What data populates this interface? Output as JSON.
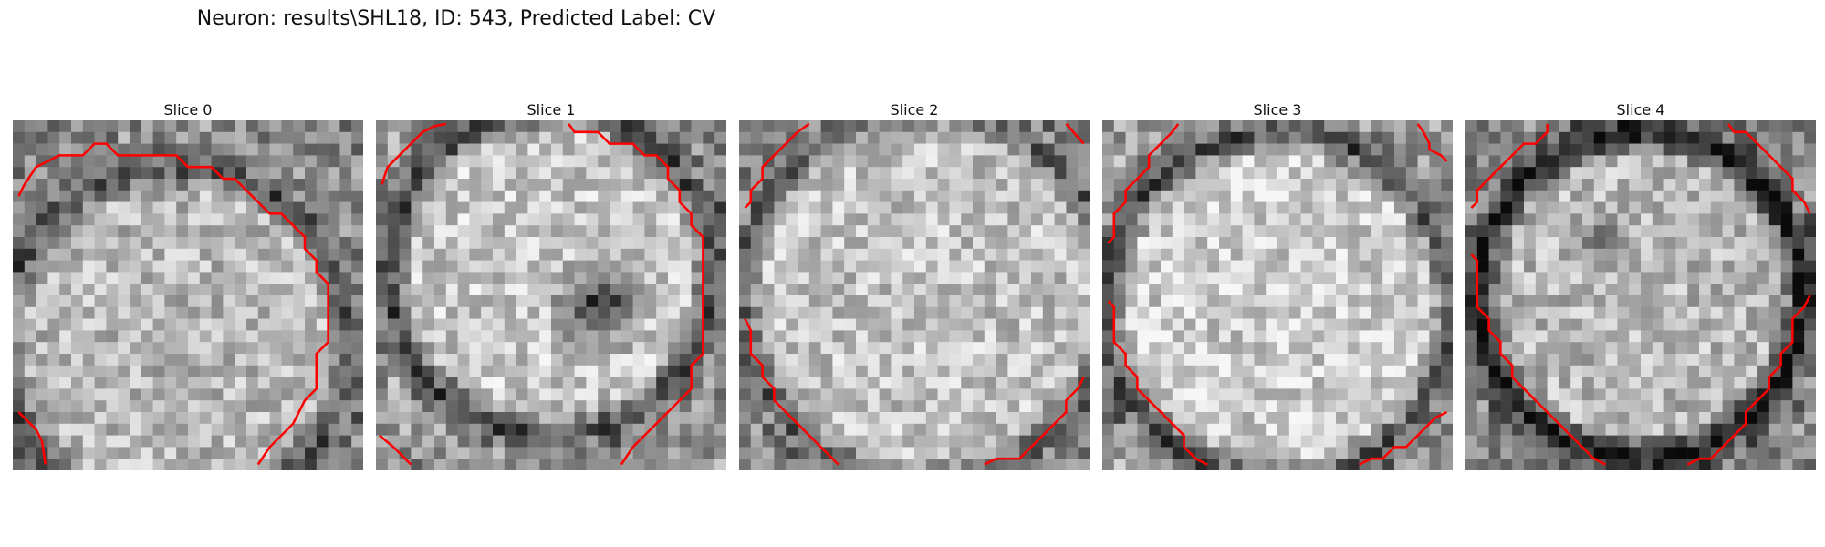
{
  "figure": {
    "title": "Neuron: results\\SHL18, ID: 543, Predicted Label: CV"
  },
  "slices": [
    {
      "title": "Slice 0"
    },
    {
      "title": "Slice 1"
    },
    {
      "title": "Slice 2"
    },
    {
      "title": "Slice 3"
    },
    {
      "title": "Slice 4"
    }
  ],
  "colors": {
    "contour": "#ff0000",
    "background": "#ffffff"
  }
}
